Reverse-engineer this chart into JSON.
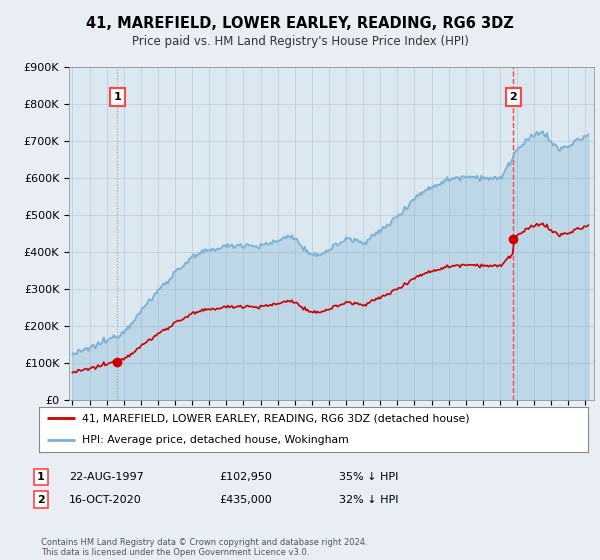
{
  "title": "41, MAREFIELD, LOWER EARLEY, READING, RG6 3DZ",
  "subtitle": "Price paid vs. HM Land Registry's House Price Index (HPI)",
  "legend_line1": "41, MAREFIELD, LOWER EARLEY, READING, RG6 3DZ (detached house)",
  "legend_line2": "HPI: Average price, detached house, Wokingham",
  "footer": "Contains HM Land Registry data © Crown copyright and database right 2024.\nThis data is licensed under the Open Government Licence v3.0.",
  "annotation1": {
    "label": "1",
    "date": "22-AUG-1997",
    "price": "£102,950",
    "pct": "35% ↓ HPI"
  },
  "annotation2": {
    "label": "2",
    "date": "16-OCT-2020",
    "price": "£435,000",
    "pct": "32% ↓ HPI"
  },
  "sale1_x": 1997.63,
  "sale1_y": 102950,
  "sale2_x": 2020.79,
  "sale2_y": 435000,
  "red_color": "#cc0000",
  "blue_color": "#7ab0d4",
  "blue_fill": "#daeaf4",
  "vline1_color": "#999999",
  "vline2_color": "#ff4444",
  "background_color": "#e8eef4",
  "plot_bg": "#dce8f0",
  "ylim": [
    0,
    900000
  ],
  "xlim_start": 1994.8,
  "xlim_end": 2025.5,
  "yticks": [
    0,
    100000,
    200000,
    300000,
    400000,
    500000,
    600000,
    700000,
    800000,
    900000
  ]
}
